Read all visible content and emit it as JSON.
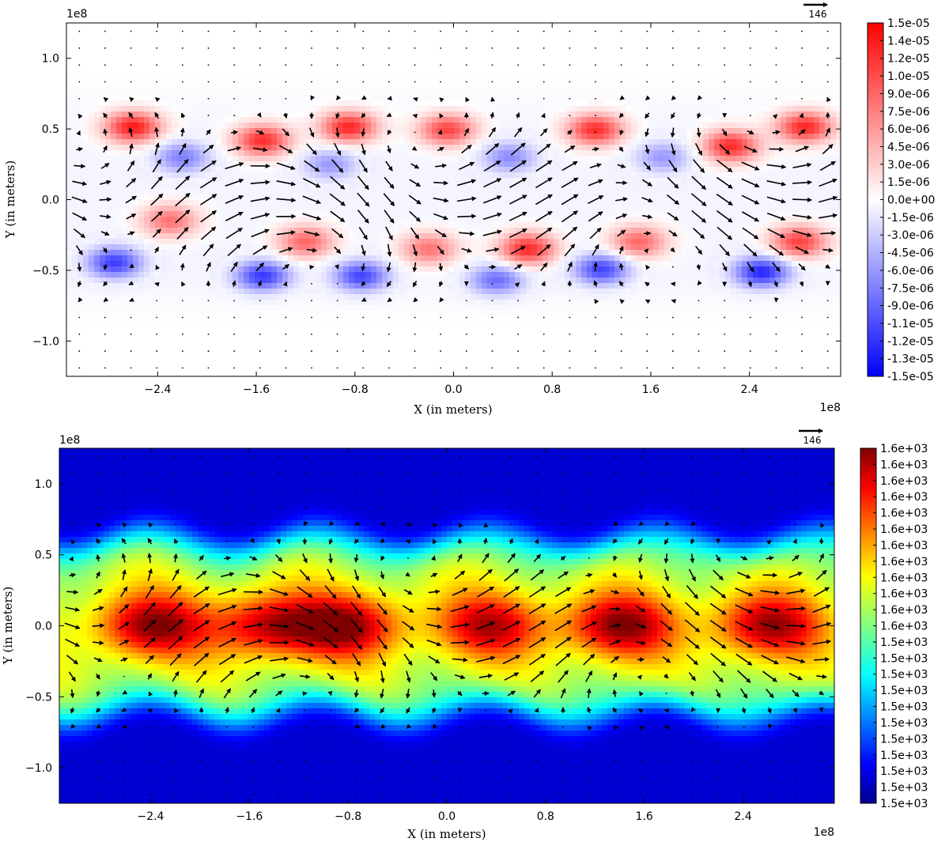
{
  "chart_data": [
    {
      "type": "heatmap",
      "subtype": "filled-contour with quiver (velocity vectors)",
      "colormap": "bwr",
      "xlabel": "X (in meters)",
      "ylabel": "Y (in meters)",
      "x_offset_label": "1e8",
      "y_offset_label": "1e8",
      "x_ticks": [
        -2.4,
        -1.6,
        -0.8,
        0.0,
        0.8,
        1.6,
        2.4
      ],
      "x_tick_labels": [
        "−2.4",
        "−1.6",
        "−0.8",
        "0.0",
        "0.8",
        "1.6",
        "2.4"
      ],
      "y_ticks": [
        -1.0,
        -0.5,
        0.0,
        0.5,
        1.0
      ],
      "y_tick_labels": [
        "−1.0",
        "−0.5",
        "0.0",
        "0.5",
        "1.0"
      ],
      "xlim": [
        -3.14,
        3.14
      ],
      "ylim": [
        -1.25,
        1.25
      ],
      "quiver_key_label": "146",
      "colorbar_labels": [
        "1.5e-05",
        "1.4e-05",
        "1.2e-05",
        "1.0e-05",
        "9.0e-06",
        "7.5e-06",
        "6.0e-06",
        "4.5e-06",
        "3.0e-06",
        "1.5e-06",
        "0.0e+00",
        "-1.5e-06",
        "-3.0e-06",
        "-4.5e-06",
        "-6.0e-06",
        "-7.5e-06",
        "-9.0e-06",
        "-1.1e-05",
        "-1.2e-05",
        "-1.3e-05",
        "-1.5e-05"
      ],
      "colorbar_range": [
        -1.5e-05,
        1.5e-05
      ],
      "vortices": [
        {
          "x": -2.6,
          "y": 0.52,
          "v": 1.0
        },
        {
          "x": -1.55,
          "y": 0.42,
          "v": 0.85
        },
        {
          "x": -0.85,
          "y": 0.52,
          "v": 0.95
        },
        {
          "x": -0.05,
          "y": 0.5,
          "v": 0.8
        },
        {
          "x": 1.15,
          "y": 0.5,
          "v": 0.9
        },
        {
          "x": 2.25,
          "y": 0.38,
          "v": 0.85
        },
        {
          "x": 2.85,
          "y": 0.52,
          "v": 0.95
        },
        {
          "x": -2.75,
          "y": -0.45,
          "v": -0.8
        },
        {
          "x": -1.55,
          "y": -0.55,
          "v": -0.9
        },
        {
          "x": -0.75,
          "y": -0.55,
          "v": -0.85
        },
        {
          "x": 0.35,
          "y": -0.58,
          "v": -0.7
        },
        {
          "x": 1.2,
          "y": -0.5,
          "v": -0.8
        },
        {
          "x": 2.5,
          "y": -0.52,
          "v": -0.95
        },
        {
          "x": -2.2,
          "y": 0.3,
          "v": -0.5
        },
        {
          "x": -1.0,
          "y": 0.25,
          "v": -0.4
        },
        {
          "x": 0.45,
          "y": 0.3,
          "v": -0.45
        },
        {
          "x": 1.7,
          "y": 0.3,
          "v": -0.4
        },
        {
          "x": -2.3,
          "y": -0.15,
          "v": 0.55
        },
        {
          "x": -1.2,
          "y": -0.3,
          "v": 0.6
        },
        {
          "x": -0.2,
          "y": -0.35,
          "v": 0.55
        },
        {
          "x": 0.6,
          "y": -0.35,
          "v": 0.85
        },
        {
          "x": 1.5,
          "y": -0.3,
          "v": 0.6
        },
        {
          "x": 2.8,
          "y": -0.3,
          "v": 0.75
        }
      ]
    },
    {
      "type": "heatmap",
      "subtype": "filled-contour with quiver (velocity vectors)",
      "colormap": "jet",
      "xlabel": "X (in meters)",
      "ylabel": "Y (in meters)",
      "x_offset_label": "1e8",
      "y_offset_label": "1e8",
      "x_ticks": [
        -2.4,
        -1.6,
        -0.8,
        0.0,
        0.8,
        1.6,
        2.4
      ],
      "x_tick_labels": [
        "−2.4",
        "−1.6",
        "−0.8",
        "0.0",
        "0.8",
        "1.6",
        "2.4"
      ],
      "y_ticks": [
        -1.0,
        -0.5,
        0.0,
        0.5,
        1.0
      ],
      "y_tick_labels": [
        "−1.0",
        "−0.5",
        "0.0",
        "0.5",
        "1.0"
      ],
      "xlim": [
        -3.14,
        3.14
      ],
      "ylim": [
        -1.25,
        1.25
      ],
      "quiver_key_label": "146",
      "colorbar_labels": [
        "1.6e+03",
        "1.6e+03",
        "1.6e+03",
        "1.6e+03",
        "1.6e+03",
        "1.6e+03",
        "1.6e+03",
        "1.6e+03",
        "1.6e+03",
        "1.6e+03",
        "1.6e+03",
        "1.6e+03",
        "1.5e+03",
        "1.5e+03",
        "1.5e+03",
        "1.5e+03",
        "1.5e+03",
        "1.5e+03",
        "1.5e+03",
        "1.5e+03",
        "1.5e+03",
        "1.5e+03",
        "1.5e+03"
      ],
      "colorbar_range": [
        1500,
        1600
      ],
      "band_half_width": 0.62,
      "core_peaks": [
        {
          "x": -2.4,
          "y": 0.0,
          "v": 1.0
        },
        {
          "x": -1.45,
          "y": 0.0,
          "v": 0.92
        },
        {
          "x": -0.8,
          "y": 0.0,
          "v": 0.95
        },
        {
          "x": 0.35,
          "y": 0.0,
          "v": 0.85
        },
        {
          "x": 1.4,
          "y": 0.0,
          "v": 1.0
        },
        {
          "x": 2.6,
          "y": 0.0,
          "v": 0.95
        }
      ]
    }
  ]
}
